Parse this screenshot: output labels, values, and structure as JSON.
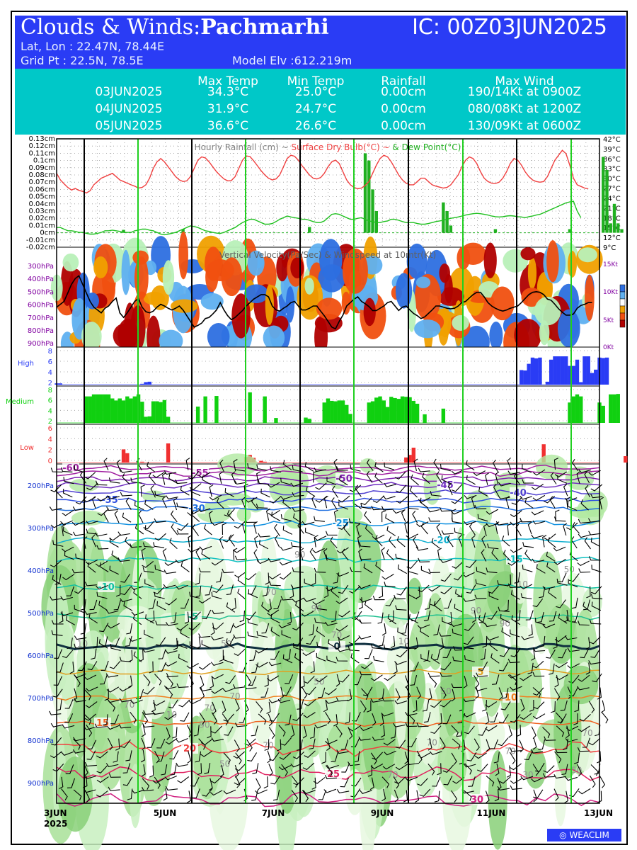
{
  "header": {
    "title_prefix": "Clouds & Winds:",
    "location": "Pachmarhi",
    "ic": "IC: 00Z03JUN2025",
    "latlon": "Lat, Lon : 22.47N, 78.44E",
    "gridpt": "Grid Pt  : 22.5N, 78.5E",
    "model_elev": "Model Elv :612.219m"
  },
  "summary": {
    "columns": [
      "Max Temp",
      "Min Temp",
      "Rainfall",
      "Max Wind"
    ],
    "rows": [
      {
        "date": "03JUN2025",
        "max_temp": "34.3°C",
        "min_temp": "25.0°C",
        "rain": "0.00cm",
        "wind": "190/14Kt at 0900Z"
      },
      {
        "date": "04JUN2025",
        "max_temp": "31.9°C",
        "min_temp": "24.7°C",
        "rain": "0.00cm",
        "wind": "080/08Kt at 1200Z"
      },
      {
        "date": "05JUN2025",
        "max_temp": "36.6°C",
        "min_temp": "26.6°C",
        "rain": "0.00cm",
        "wind": "130/09Kt at 0600Z"
      }
    ]
  },
  "chart_data": [
    {
      "type": "line",
      "title": "Hourly Rainfall (cm) ~ Surface Dry Bulb(°C) ~ & Dew Point(°C)",
      "title_parts": [
        "Hourly Rainfall (cm)",
        "Surface Dry Bulb(°C)",
        "& Dew Point(°C)"
      ],
      "left_ticks": [
        "0.13cm",
        "0.12cm",
        "0.11cm",
        "0.1cm",
        "0.09cm",
        "0.08cm",
        "0.07cm",
        "0.06cm",
        "0.05cm",
        "0.04cm",
        "0.03cm",
        "0.02cm",
        "0.01cm",
        "0cm",
        "-0.01cm",
        "-0.02cm"
      ],
      "right_ticks": [
        "42°C",
        "39°C",
        "36°C",
        "33°C",
        "30°C",
        "27°C",
        "24°C",
        "21°C",
        "18°C",
        "15°C",
        "12°C",
        "9°C"
      ],
      "ylim_rain": [
        -0.02,
        0.13
      ],
      "ylim_temp": [
        9,
        42
      ],
      "colors": {
        "dry_bulb": "#f04040",
        "dew_point": "#20c020",
        "rain": "#20b020"
      },
      "dry_bulb": [
        31.5,
        29.5,
        28.3,
        27.2,
        26.4,
        26.9,
        26.3,
        26.0,
        25.5,
        26.2,
        28.0,
        29.0,
        30.0,
        30.5,
        31.0,
        31.5,
        30.5,
        29.5,
        29.0,
        28.5,
        28.0,
        27.6,
        27.0,
        27.2,
        28.0,
        30.0,
        33.0,
        35.0,
        36.0,
        35.0,
        33.5,
        32.0,
        30.5,
        29.5,
        29.0,
        29.2,
        30.5,
        33.0,
        35.5,
        36.5,
        36.2,
        35.0,
        33.5,
        32.0,
        30.8,
        29.8,
        29.2,
        29.3,
        30.5,
        33.0,
        35.5,
        36.8,
        36.6,
        35.3,
        33.8,
        32.3,
        31.0,
        30.0,
        29.5,
        29.8,
        31.0,
        33.5,
        36.0,
        37.0,
        36.7,
        35.5,
        33.8,
        32.4,
        31.0,
        30.0,
        29.8,
        30.2,
        31.5,
        33.5,
        35.0,
        35.5,
        34.5,
        32.0,
        29.5,
        28.0,
        27.2,
        26.8,
        27.0,
        27.8,
        29.0,
        31.5,
        34.0,
        36.0,
        37.0,
        36.5,
        35.0,
        33.0,
        31.0,
        29.5,
        28.5,
        28.0,
        28.0,
        29.0,
        30.0,
        30.0,
        29.0,
        28.0,
        27.6,
        27.3,
        27.0,
        27.2,
        28.0,
        29.5,
        31.0,
        33.5,
        35.5,
        36.5,
        36.0,
        34.5,
        32.0,
        30.0,
        29.0,
        28.5,
        28.4,
        28.8,
        30.0,
        32.0,
        34.5,
        36.0,
        35.5,
        34.0,
        32.0,
        30.5,
        29.5,
        29.0,
        28.8,
        29.0,
        30.5,
        33.0,
        35.5,
        37.0,
        38.5,
        37.5,
        34.0,
        30.0,
        28.0,
        27.5,
        27.0,
        26.8
      ],
      "dew_point": [
        15,
        15,
        14.5,
        14,
        14,
        13.8,
        13.5,
        13.5,
        13.2,
        13.0,
        13.0,
        13.2,
        13.5,
        14,
        14,
        14.2,
        14,
        13.8,
        13.5,
        13.5,
        13.5,
        14,
        14.2,
        14.5,
        14.5,
        14.2,
        14.0,
        13.5,
        13.0,
        12.8,
        13.0,
        13.2,
        13.5,
        14,
        14.5,
        15,
        15.5,
        15.3,
        15,
        14.5,
        14,
        13.8,
        13.5,
        13.3,
        13.2,
        13.5,
        14,
        14.5,
        15,
        15.8,
        16.5,
        17,
        17.5,
        17.5,
        17,
        16.5,
        16,
        16,
        16.2,
        16.8,
        17.5,
        18,
        18.5,
        18.2,
        18,
        17.8,
        17.5,
        17.5,
        17.2,
        16.8,
        16.5,
        16.5,
        17,
        18,
        19,
        19.2,
        19.0,
        18.5,
        18.0,
        17.5,
        17.5,
        17.8,
        18.0,
        17.5,
        17,
        16.8,
        16.5,
        16.5,
        16.8,
        17,
        17.5,
        17.5,
        17.2,
        16.8,
        16.5,
        16.5,
        16.5,
        16.2,
        16.0,
        16.0,
        16.2,
        16.5,
        16.8,
        17,
        17.2,
        17.5,
        17.8,
        18,
        18.2,
        18.5,
        18.8,
        19,
        19.2,
        19.3,
        19.2,
        19.0,
        18.8,
        18.5,
        18.3,
        18.2,
        18.3,
        18.5,
        18.6,
        18.5,
        18.3,
        18.2,
        18.0,
        18.3,
        18.5,
        18.8,
        19,
        19.5,
        20,
        20.5,
        21,
        21.5,
        22,
        22.5,
        22.8,
        23,
        20,
        18
      ],
      "rain": [
        0,
        0,
        0,
        0,
        0,
        0,
        0,
        0,
        0,
        0,
        0,
        0,
        0,
        0,
        0,
        0,
        0,
        0,
        0.004,
        0,
        0,
        0,
        0,
        0,
        0,
        0,
        0,
        0,
        0,
        0,
        0,
        0,
        0,
        0,
        0.005,
        0,
        0,
        0,
        0,
        0,
        0,
        0,
        0,
        0,
        0,
        0,
        0,
        0,
        0,
        0,
        0,
        0,
        0,
        0,
        0,
        0,
        0,
        0,
        0,
        0,
        0,
        0,
        0,
        0,
        0,
        0,
        0,
        0,
        0.008,
        0,
        0,
        0,
        0,
        0,
        0,
        0,
        0,
        0,
        0,
        0,
        0,
        0,
        0,
        0.11,
        0.1,
        0.06,
        0.03,
        0,
        0,
        0,
        0,
        0,
        0,
        0,
        0,
        0,
        0,
        0,
        0,
        0,
        0,
        0,
        0,
        0,
        0.042,
        0.03,
        0.01,
        0,
        0,
        0,
        0,
        0,
        0,
        0,
        0,
        0,
        0,
        0,
        0.005,
        0,
        0,
        0,
        0,
        0,
        0,
        0,
        0,
        0,
        0,
        0,
        0,
        0,
        0,
        0,
        0,
        0,
        0,
        0,
        0.005,
        0,
        0,
        0,
        0,
        0,
        0,
        0,
        0,
        0.105,
        0.087,
        0.013,
        0.04,
        0.013,
        0.005,
        0,
        0,
        0
      ]
    },
    {
      "type": "heatmap",
      "title": "Vertical Velocity(Pa/Sec) & Windspeed at 10mtr(Kt)",
      "levels": [
        "300hPa",
        "400hPa",
        "500hPa",
        "600hPa",
        "700hPa",
        "800hPa",
        "900hPa"
      ],
      "right_ticks": [
        "15Kt",
        "10Kt",
        "5Kt",
        "0Kt"
      ],
      "ylim_wind": [
        0,
        17.5
      ],
      "palette": [
        "#2d6fe0",
        "#5fb0f0",
        "#b8f0b8",
        "#ffffff",
        "#f0a000",
        "#f05010",
        "#b00000"
      ],
      "windspeed_10m": [
        7,
        7.5,
        8,
        9.5,
        11,
        12,
        12.5,
        11,
        9.5,
        8,
        7,
        6.5,
        6,
        6.8,
        7.2,
        8,
        8.6,
        6,
        5.2,
        6,
        7,
        8,
        8.5,
        7,
        6.2,
        6,
        6.3,
        7,
        7.5,
        7.2,
        6.8,
        6.5,
        6.8,
        7.2,
        6.5,
        5.5,
        4.5,
        3.5,
        3.8,
        4.2,
        5,
        5.2,
        5.8,
        6.5,
        7.8,
        6.5,
        5.5,
        4.8,
        5.2,
        5.8,
        6.4,
        7.2,
        7.8,
        8.4,
        8.8,
        9.2,
        9.2,
        8.8,
        7.2,
        6.5,
        6.3,
        6.8,
        7.2,
        7.8,
        8,
        7.2,
        6.5,
        6.5,
        6.8,
        7.2,
        7.2,
        6.3,
        5.5,
        4.5,
        3.5,
        3.2,
        4.5,
        5.6,
        7.2,
        7.8,
        8.4,
        8.8,
        8,
        7.6,
        7.1,
        6.4,
        6.4,
        6.8,
        7.2,
        7.8,
        8,
        7.2,
        6.4,
        7,
        7.2,
        6.5,
        5.9,
        5.5,
        5,
        5.3,
        5.9,
        6.5,
        7.2,
        7.2,
        7,
        6.8,
        6.7,
        6.8,
        7.2,
        7.8,
        8,
        8.6,
        9.2,
        9.6,
        9.6,
        8.8,
        7.8,
        7.2,
        6.8,
        6.5,
        6.3,
        6.5,
        6.8,
        7,
        7.2,
        7.8,
        8.5,
        9.2,
        9.6,
        9.7,
        9.6,
        9.2,
        8.4,
        8.2,
        7.5,
        6.7,
        6.1,
        5.6,
        5.6,
        5.8,
        6.8,
        7.3,
        7.5,
        7.8,
        7.8
      ]
    },
    {
      "type": "bar",
      "title": "High",
      "yticks": [
        "8",
        "6",
        "4",
        "2"
      ],
      "ylim": [
        0,
        8
      ],
      "color": "#2a3cf5",
      "values": [
        0.3,
        0.3,
        0,
        0,
        0,
        0,
        0,
        0,
        0,
        0,
        0,
        0,
        0,
        0,
        0,
        0,
        0,
        0,
        0,
        0,
        0,
        0,
        0,
        0.2,
        0.6,
        0.7,
        0,
        0,
        0,
        0,
        0,
        0,
        0,
        0,
        0,
        0,
        0,
        0,
        0,
        0,
        0,
        0,
        0,
        0,
        0,
        0,
        0,
        0,
        0,
        0,
        0,
        0,
        0,
        0,
        0,
        0,
        0,
        0,
        0,
        0,
        0,
        0,
        0,
        0,
        0,
        0,
        0,
        0,
        0,
        0,
        0,
        0,
        0,
        0,
        0,
        0,
        0,
        0,
        0,
        0,
        0,
        0,
        0,
        0,
        0,
        0,
        0,
        0,
        0,
        0,
        0,
        0,
        0,
        0,
        0,
        0,
        0,
        0,
        0,
        0,
        0,
        0,
        0,
        0,
        0,
        0,
        0,
        0,
        0,
        0,
        0,
        0,
        0,
        0,
        0,
        0,
        0,
        0,
        0,
        0,
        0,
        0,
        0,
        0,
        0,
        3.5,
        3.4,
        5,
        6.5,
        6.3,
        6.5,
        0,
        0.7,
        6,
        6.8,
        6.8,
        6.8,
        6.8,
        4.5,
        4.5,
        6,
        0.6,
        6.8,
        6.8,
        2.8,
        3.6,
        6.5,
        6.4,
        6.5
      ]
    },
    {
      "type": "bar",
      "title": "Medium",
      "yticks": [
        "8",
        "6",
        "4",
        "2"
      ],
      "ylim": [
        0,
        8
      ],
      "color": "#10d010",
      "values": [
        0,
        0,
        0,
        0,
        0,
        0,
        0,
        0,
        6.5,
        6.5,
        7,
        7,
        7,
        7,
        7,
        6,
        5.5,
        6,
        5.5,
        6.5,
        6,
        6.5,
        7,
        5.2,
        1.5,
        1.6,
        5.3,
        5.3,
        5.1,
        5.6,
        1.5,
        0,
        0,
        0,
        0,
        0,
        0,
        0,
        4,
        0,
        6.5,
        0,
        0,
        6.6,
        0,
        0,
        0,
        0,
        0,
        0,
        0,
        0,
        7.5,
        0,
        0,
        0,
        6.5,
        0,
        0,
        1.2,
        0,
        0,
        0,
        0,
        0,
        0,
        0,
        1.3,
        1,
        0,
        0,
        0,
        5,
        6,
        5.4,
        5.3,
        5.5,
        5.5,
        4.4,
        2.2,
        0,
        0,
        0,
        0,
        5,
        5.3,
        6.2,
        6.5,
        5.5,
        3.9,
        6.4,
        6.1,
        5.9,
        6.5,
        6.4,
        6.3,
        5.4,
        4.7,
        0,
        2.1,
        0,
        0,
        0,
        0,
        3.5,
        0,
        0,
        0,
        0,
        0,
        0,
        0,
        0,
        0,
        0,
        0,
        0,
        0,
        0,
        0,
        0,
        0,
        0,
        0,
        0,
        0,
        0,
        0,
        0,
        0,
        0,
        0,
        0,
        0,
        0,
        0,
        0,
        0,
        5,
        6.5,
        7,
        6.5,
        0,
        0,
        0,
        0,
        5,
        4.2,
        0,
        7,
        7,
        7.1
      ]
    },
    {
      "type": "bar",
      "title": "Low",
      "yticks": [
        "6",
        "4",
        "2",
        "0"
      ],
      "ylim": [
        0,
        8
      ],
      "color": "#f03030",
      "values": [
        0,
        0,
        0,
        0,
        0,
        0,
        0,
        0,
        0,
        0,
        0,
        0,
        0,
        0,
        0,
        0,
        0,
        0,
        3.1,
        2.2,
        0,
        0,
        0,
        0.2,
        0,
        0,
        0,
        0,
        0,
        0,
        4.5,
        0,
        0,
        0,
        0,
        0,
        0,
        0,
        0,
        0,
        0,
        0,
        0,
        0,
        0,
        0,
        0,
        0,
        0,
        0,
        0,
        1.3,
        1.8,
        1.1,
        0,
        0.4,
        0.2,
        0,
        0,
        0,
        0,
        0,
        0,
        0,
        0,
        0,
        0,
        0,
        0,
        0,
        0,
        0,
        0,
        0,
        0,
        0,
        0,
        0,
        0,
        0,
        0,
        0,
        0,
        0,
        0,
        0,
        0,
        0,
        0,
        0,
        0,
        0,
        0,
        0,
        1.2,
        1.8,
        3.5,
        0,
        0,
        0,
        0,
        0,
        0,
        0,
        0,
        0,
        0,
        0,
        0,
        0,
        0,
        0,
        0,
        0,
        0,
        0,
        0,
        0,
        0,
        0,
        0,
        0,
        0,
        0,
        0,
        0,
        0,
        0,
        0,
        0,
        0,
        4.3,
        0,
        0,
        0,
        0,
        0,
        0,
        0,
        0,
        0,
        0,
        0,
        0,
        0,
        0,
        0,
        0,
        0,
        0,
        0,
        0,
        0,
        1.5,
        0,
        0,
        0,
        0,
        0,
        0,
        0,
        0,
        0,
        0,
        7.4,
        7.3,
        0,
        0
      ]
    },
    {
      "type": "heatmap",
      "title": "",
      "levels": [
        "200hPa",
        "300hPa",
        "400hPa",
        "500hPa",
        "600hPa",
        "700hPa",
        "800hPa",
        "900hPa"
      ],
      "x_ticks": [
        "3JUN",
        "5JUN",
        "7JUN",
        "9JUN",
        "11JUN",
        "13JUN"
      ],
      "year": "2025",
      "isotherms": [
        {
          "label": "-60",
          "p": 160,
          "color": "#a020a0"
        },
        {
          "label": "-55",
          "p": 172,
          "color": "#a020a0"
        },
        {
          "label": "-50",
          "p": 185,
          "color": "#8020b0"
        },
        {
          "label": "-45",
          "p": 200,
          "color": "#7030c0"
        },
        {
          "label": "-40",
          "p": 218,
          "color": "#5040d0"
        },
        {
          "label": "-35",
          "p": 235,
          "color": "#3050e0"
        },
        {
          "label": "-30",
          "p": 255,
          "color": "#2070e0"
        },
        {
          "label": "-25",
          "p": 290,
          "color": "#1090e0"
        },
        {
          "label": "-20",
          "p": 330,
          "color": "#10b0d0"
        },
        {
          "label": "-15",
          "p": 375,
          "color": "#10c0c0"
        },
        {
          "label": "-10",
          "p": 440,
          "color": "#10c0a0"
        },
        {
          "label": "-5",
          "p": 510,
          "color": "#20c090"
        },
        {
          "label": "0",
          "p": 580,
          "color": "#103040"
        },
        {
          "label": "5",
          "p": 640,
          "color": "#e0a020"
        },
        {
          "label": "10",
          "p": 700,
          "color": "#f08020"
        },
        {
          "label": "15",
          "p": 760,
          "color": "#f06020"
        },
        {
          "label": "20",
          "p": 820,
          "color": "#f04040"
        },
        {
          "label": "25",
          "p": 880,
          "color": "#e02060"
        },
        {
          "label": "30",
          "p": 940,
          "color": "#d02080"
        }
      ],
      "rh_labels": [
        "10",
        "90",
        "50",
        "70",
        "50",
        "10",
        "70",
        "90",
        "10",
        "30",
        "70",
        "90",
        "50",
        "90",
        "70",
        "10",
        "70",
        "70",
        "50",
        "50",
        "70",
        "50",
        "90",
        "70",
        "70",
        "70"
      ]
    }
  ],
  "brand": "WEACLIM"
}
